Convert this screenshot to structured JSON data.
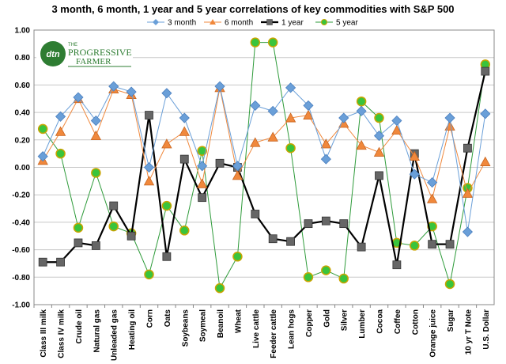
{
  "chart_data": {
    "type": "line",
    "title": "3 month, 6 month, 1 year and 5 year correlations of key commodities with S&P 500",
    "xlabel": "",
    "ylabel": "",
    "ylim": [
      -1.0,
      1.0
    ],
    "yticks": [
      "1.00",
      "0.80",
      "0.60",
      "0.40",
      "0.20",
      "0.00",
      "-0.20",
      "-0.40",
      "-0.60",
      "-0.80",
      "-1.00"
    ],
    "ytick_values": [
      1.0,
      0.8,
      0.6,
      0.4,
      0.2,
      0.0,
      -0.2,
      -0.4,
      -0.6,
      -0.8,
      -1.0
    ],
    "grid": true,
    "legend_position": "top",
    "categories": [
      "Class III milk",
      "Class IV milk",
      "Crude oil",
      "Natural gas",
      "Unleaded gas",
      "Heating oil",
      "Corn",
      "Oats",
      "Soybeans",
      "Soymeal",
      "Beanoil",
      "Wheat",
      "Live cattle",
      "Feeder cattle",
      "Lean hogs",
      "Copper",
      "Gold",
      "Silver",
      "Lumber",
      "Cocoa",
      "Coffee",
      "Cotton",
      "Orange juice",
      "Sugar",
      "10 yr T Note",
      "U.S. Dollar"
    ],
    "series": [
      {
        "name": "3 month",
        "color": "#6a9fd8",
        "marker": "diamond",
        "values": [
          0.08,
          0.37,
          0.51,
          0.34,
          0.59,
          0.55,
          0.0,
          0.54,
          0.36,
          0.01,
          0.59,
          0.01,
          0.45,
          0.41,
          0.58,
          0.45,
          0.06,
          0.36,
          0.41,
          0.23,
          0.34,
          -0.05,
          -0.11,
          0.36,
          -0.47,
          0.39
        ]
      },
      {
        "name": "6 month",
        "color": "#f0883c",
        "marker": "triangle",
        "values": [
          0.05,
          0.26,
          0.5,
          0.23,
          0.57,
          0.53,
          -0.1,
          0.17,
          0.26,
          -0.12,
          0.58,
          -0.06,
          0.18,
          0.22,
          0.36,
          0.38,
          0.17,
          0.32,
          0.16,
          0.11,
          0.27,
          0.08,
          -0.23,
          0.3,
          -0.19,
          0.04
        ]
      },
      {
        "name": "1 year",
        "color": "#000000",
        "marker": "square",
        "values": [
          -0.69,
          -0.69,
          -0.55,
          -0.57,
          -0.28,
          -0.5,
          0.38,
          -0.65,
          0.06,
          -0.22,
          0.03,
          0.0,
          -0.34,
          -0.52,
          -0.54,
          -0.41,
          -0.39,
          -0.41,
          -0.58,
          -0.06,
          -0.71,
          0.1,
          -0.56,
          -0.56,
          0.14,
          0.7
        ]
      },
      {
        "name": "5 year",
        "color": "#2e9b3a",
        "marker": "circle",
        "values": [
          0.28,
          0.1,
          -0.44,
          -0.04,
          -0.43,
          -0.48,
          -0.78,
          -0.28,
          -0.46,
          0.12,
          -0.88,
          -0.65,
          0.91,
          0.91,
          0.14,
          -0.8,
          -0.75,
          -0.81,
          0.48,
          0.36,
          -0.55,
          -0.57,
          -0.43,
          -0.85,
          -0.15,
          0.75
        ]
      }
    ]
  },
  "logo": {
    "mark": "dtn",
    "line1": "THE",
    "line2": "PROGRESSIVE",
    "line3": "FARMER"
  }
}
